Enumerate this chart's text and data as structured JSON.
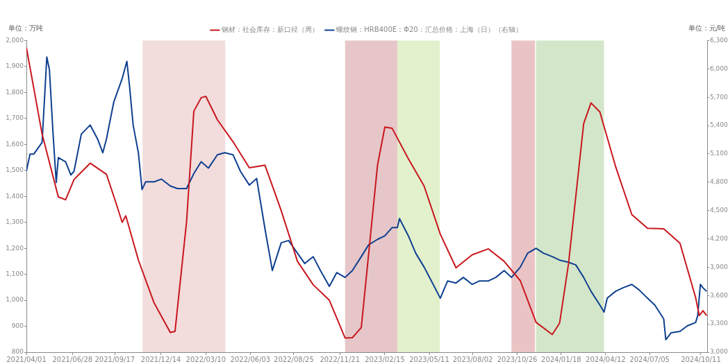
{
  "chart_data": {
    "type": "line",
    "ylabel": "单位：万吨",
    "y2label": "单位：元/吨",
    "legend": "top",
    "marker": "none",
    "line_style": "solid",
    "grid": false,
    "xlim": [
      "2021-04-01",
      "2024-10-23"
    ],
    "xticks": [
      {
        "value": "2021-04-01",
        "label": "2021/04/01"
      },
      {
        "value": "2021-06-28",
        "label": "2021/06/28"
      },
      {
        "value": "2021-09-17",
        "label": "2021/09/17"
      },
      {
        "value": "2021-12-14",
        "label": "2021/12/14"
      },
      {
        "value": "2022-03-10",
        "label": "2022/03/10"
      },
      {
        "value": "2022-06-03",
        "label": "2022/06/03"
      },
      {
        "value": "2022-08-25",
        "label": "2022/08/25"
      },
      {
        "value": "2022-11-21",
        "label": "2022/11/21"
      },
      {
        "value": "2023-02-15",
        "label": "2023/02/15"
      },
      {
        "value": "2023-05-11",
        "label": "2023/05/11"
      },
      {
        "value": "2023-08-02",
        "label": "2023/08/02"
      },
      {
        "value": "2023-10-26",
        "label": "2023/10/26"
      },
      {
        "value": "2024-01-18",
        "label": "2024/01/18"
      },
      {
        "value": "2024-04-12",
        "label": "2024/04/12"
      },
      {
        "value": "2024-07-05",
        "label": "2024/07/05"
      },
      {
        "value": "2024-10-11",
        "label": "2024/10/11"
      }
    ],
    "ylim": [
      800,
      2000
    ],
    "yticks": [
      {
        "value": 800,
        "label": "800"
      },
      {
        "value": 900,
        "label": "900"
      },
      {
        "value": 1000,
        "label": "1,000"
      },
      {
        "value": 1100,
        "label": "1,100"
      },
      {
        "value": 1200,
        "label": "1,200"
      },
      {
        "value": 1300,
        "label": "1,300"
      },
      {
        "value": 1400,
        "label": "1,400"
      },
      {
        "value": 1500,
        "label": "1,500"
      },
      {
        "value": 1600,
        "label": "1,600"
      },
      {
        "value": 1700,
        "label": "1,700"
      },
      {
        "value": 1800,
        "label": "1,800"
      },
      {
        "value": 1900,
        "label": "1,900"
      },
      {
        "value": 2000,
        "label": "2,000"
      }
    ],
    "y2lim": [
      3000,
      6300
    ],
    "y2ticks": [
      {
        "value": 3000,
        "label": "3,000"
      },
      {
        "value": 3300,
        "label": "3,300"
      },
      {
        "value": 3600,
        "label": "3,600"
      },
      {
        "value": 3900,
        "label": "3,900"
      },
      {
        "value": 4200,
        "label": "4,200"
      },
      {
        "value": 4500,
        "label": "4,500"
      },
      {
        "value": 4800,
        "label": "4,800"
      },
      {
        "value": 5100,
        "label": "5,100"
      },
      {
        "value": 5400,
        "label": "5,400"
      },
      {
        "value": 5700,
        "label": "5,700"
      },
      {
        "value": 6000,
        "label": "6,000"
      },
      {
        "value": 6300,
        "label": "6,300"
      }
    ],
    "bands": [
      {
        "axis": "x",
        "from": "2021-11-09",
        "to": "2022-04-16",
        "color": "#f2dcdc"
      },
      {
        "axis": "x",
        "from": "2022-12-01",
        "to": "2023-03-11",
        "color": "#e6c6c8"
      },
      {
        "axis": "x",
        "from": "2023-03-11",
        "to": "2023-05-31",
        "color": "#e2f0cc"
      },
      {
        "axis": "x",
        "from": "2023-10-15",
        "to": "2023-11-29",
        "color": "#eac4c4"
      },
      {
        "axis": "x",
        "from": "2023-12-01",
        "to": "2024-04-09",
        "color": "#d4e6c9"
      }
    ],
    "series": [
      {
        "name": "钢材：社会库存：新口径（周）",
        "color": "#c8161d",
        "x": [
          "2021-04-01",
          "2021-05-01",
          "2021-06-01",
          "2021-06-15",
          "2021-07-01",
          "2021-08-01",
          "2021-09-01",
          "2021-09-20",
          "2021-10-01",
          "2021-10-08",
          "2021-11-01",
          "2021-12-01",
          "2022-01-01",
          "2022-01-10",
          "2022-02-01",
          "2022-02-15",
          "2022-03-01",
          "2022-03-10",
          "2022-04-01",
          "2022-05-01",
          "2022-06-01",
          "2022-07-01",
          "2022-08-01",
          "2022-09-01",
          "2022-10-01",
          "2022-11-01",
          "2022-12-01",
          "2022-12-15",
          "2023-01-01",
          "2023-02-01",
          "2023-02-15",
          "2023-03-01",
          "2023-04-01",
          "2023-05-01",
          "2023-06-01",
          "2023-07-01",
          "2023-08-01",
          "2023-09-01",
          "2023-10-01",
          "2023-11-01",
          "2023-12-01",
          "2024-01-01",
          "2024-01-15",
          "2024-02-01",
          "2024-03-01",
          "2024-03-15",
          "2024-04-01",
          "2024-05-01",
          "2024-06-01",
          "2024-07-01",
          "2024-08-01",
          "2024-09-01",
          "2024-10-01",
          "2024-10-08",
          "2024-10-15",
          "2024-10-22"
        ],
        "values": [
          1973,
          1640,
          1398,
          1387,
          1465,
          1528,
          1485,
          1370,
          1300,
          1325,
          1155,
          990,
          876,
          880,
          1300,
          1728,
          1780,
          1785,
          1695,
          1610,
          1510,
          1520,
          1345,
          1150,
          1060,
          1000,
          855,
          856,
          895,
          1520,
          1667,
          1662,
          1545,
          1440,
          1255,
          1125,
          1175,
          1198,
          1150,
          1075,
          915,
          868,
          912,
          1140,
          1680,
          1760,
          1725,
          1515,
          1330,
          1277,
          1275,
          1220,
          1010,
          941,
          960,
          941
        ]
      },
      {
        "name": "螺纹钢：HRB400E：Φ20：汇总价格：上海（日）（右轴）",
        "color": "#0d3f8f",
        "axis": "y2",
        "x": [
          "2021-04-01",
          "2021-04-08",
          "2021-04-15",
          "2021-05-01",
          "2021-05-10",
          "2021-05-15",
          "2021-05-22",
          "2021-05-28",
          "2021-06-01",
          "2021-06-15",
          "2021-06-25",
          "2021-07-01",
          "2021-07-15",
          "2021-08-01",
          "2021-08-15",
          "2021-08-25",
          "2021-09-01",
          "2021-09-15",
          "2021-10-01",
          "2021-10-10",
          "2021-10-15",
          "2021-10-22",
          "2021-11-01",
          "2021-11-08",
          "2021-11-15",
          "2021-12-01",
          "2021-12-15",
          "2022-01-01",
          "2022-01-15",
          "2022-02-01",
          "2022-02-15",
          "2022-03-01",
          "2022-03-15",
          "2022-04-01",
          "2022-04-15",
          "2022-05-01",
          "2022-05-15",
          "2022-06-01",
          "2022-06-15",
          "2022-07-01",
          "2022-07-15",
          "2022-08-01",
          "2022-08-15",
          "2022-09-01",
          "2022-09-15",
          "2022-10-01",
          "2022-10-15",
          "2022-11-01",
          "2022-11-15",
          "2022-12-01",
          "2022-12-15",
          "2023-01-01",
          "2023-01-15",
          "2023-02-01",
          "2023-02-15",
          "2023-03-01",
          "2023-03-11",
          "2023-03-15",
          "2023-04-01",
          "2023-04-15",
          "2023-05-01",
          "2023-05-15",
          "2023-06-01",
          "2023-06-15",
          "2023-07-01",
          "2023-07-15",
          "2023-08-01",
          "2023-08-15",
          "2023-09-01",
          "2023-09-15",
          "2023-10-01",
          "2023-10-15",
          "2023-11-01",
          "2023-11-15",
          "2023-12-01",
          "2023-12-15",
          "2024-01-01",
          "2024-01-15",
          "2024-02-01",
          "2024-02-15",
          "2024-03-01",
          "2024-03-15",
          "2024-04-01",
          "2024-04-09",
          "2024-04-15",
          "2024-05-01",
          "2024-05-15",
          "2024-06-01",
          "2024-06-15",
          "2024-07-01",
          "2024-07-15",
          "2024-08-01",
          "2024-08-05",
          "2024-08-15",
          "2024-09-01",
          "2024-09-15",
          "2024-10-01",
          "2024-10-05",
          "2024-10-10",
          "2024-10-15",
          "2024-10-22"
        ],
        "values": [
          4920,
          5097,
          5097,
          5222,
          6126,
          5992,
          5310,
          4797,
          5061,
          5017,
          4877,
          4916,
          5310,
          5405,
          5258,
          5112,
          5258,
          5650,
          5897,
          6080,
          5823,
          5405,
          5112,
          4723,
          4804,
          4804,
          4833,
          4760,
          4733,
          4733,
          4892,
          5017,
          4950,
          5090,
          5112,
          5090,
          4916,
          4770,
          4840,
          4305,
          3865,
          4159,
          4183,
          4049,
          3939,
          4012,
          3865,
          3697,
          3843,
          3792,
          3865,
          4012,
          4137,
          4195,
          4232,
          4320,
          4320,
          4415,
          4232,
          4049,
          3902,
          3755,
          3572,
          3755,
          3733,
          3792,
          3718,
          3755,
          3755,
          3792,
          3865,
          3792,
          3902,
          4049,
          4100,
          4049,
          4012,
          3975,
          3953,
          3924,
          3792,
          3645,
          3499,
          3425,
          3572,
          3645,
          3682,
          3718,
          3660,
          3572,
          3499,
          3352,
          3132,
          3205,
          3220,
          3279,
          3315,
          3389,
          3718,
          3682,
          3645
        ]
      }
    ]
  }
}
